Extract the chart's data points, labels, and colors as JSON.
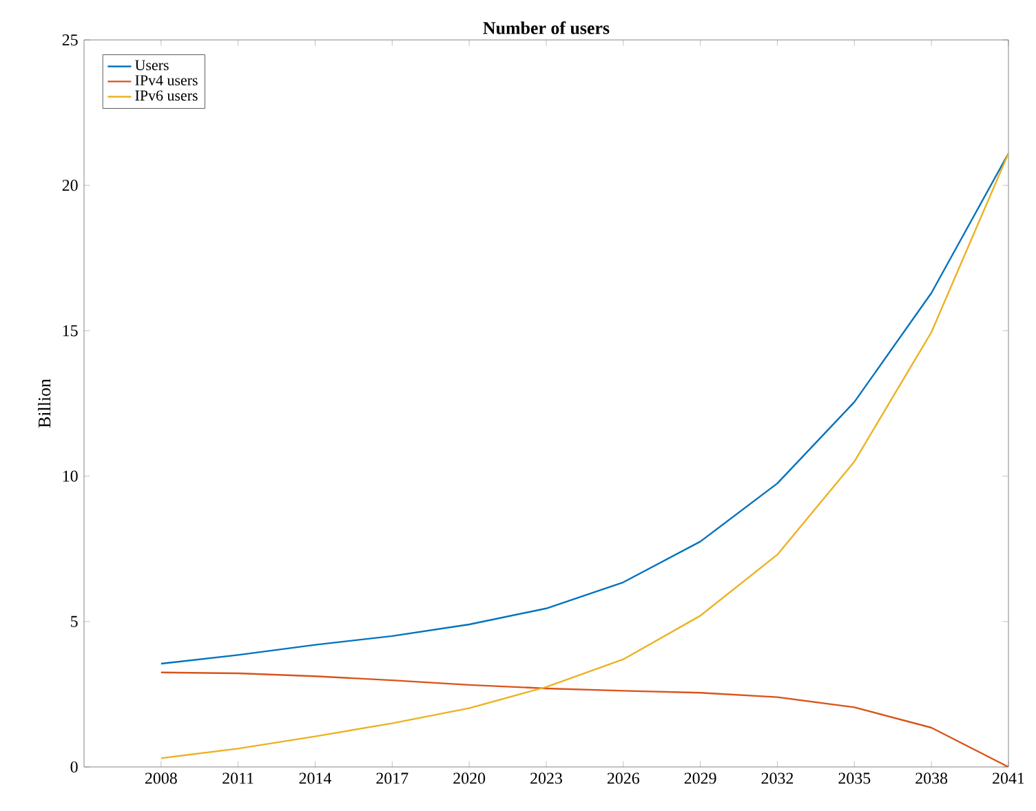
{
  "chart_data": {
    "type": "line",
    "title": "Number of users",
    "ylabel": "Billion",
    "x": [
      2008,
      2011,
      2014,
      2017,
      2020,
      2023,
      2026,
      2029,
      2032,
      2035,
      2038,
      2041
    ],
    "xlim": [
      2005,
      2041
    ],
    "xticks": [
      2008,
      2011,
      2014,
      2017,
      2020,
      2023,
      2026,
      2029,
      2032,
      2035,
      2038,
      2041
    ],
    "ylim": [
      0,
      25
    ],
    "yticks": [
      0,
      5,
      10,
      15,
      20,
      25
    ],
    "grid": false,
    "legend": "top left",
    "marker": "none",
    "line_style": "solid",
    "series": [
      {
        "name": "Users",
        "color": "#0072bd",
        "values": [
          3.55,
          3.85,
          4.2,
          4.5,
          4.9,
          5.45,
          6.35,
          7.75,
          9.75,
          12.55,
          16.3,
          21.1
        ]
      },
      {
        "name": "IPv4 users",
        "color": "#d95319",
        "values": [
          3.25,
          3.22,
          3.12,
          2.98,
          2.82,
          2.7,
          2.62,
          2.55,
          2.4,
          2.05,
          1.35,
          0
        ]
      },
      {
        "name": "IPv6 users",
        "color": "#edb120",
        "values": [
          0.3,
          0.63,
          1.05,
          1.5,
          2.02,
          2.75,
          3.7,
          5.2,
          7.3,
          10.5,
          14.95,
          21.1
        ]
      }
    ]
  }
}
